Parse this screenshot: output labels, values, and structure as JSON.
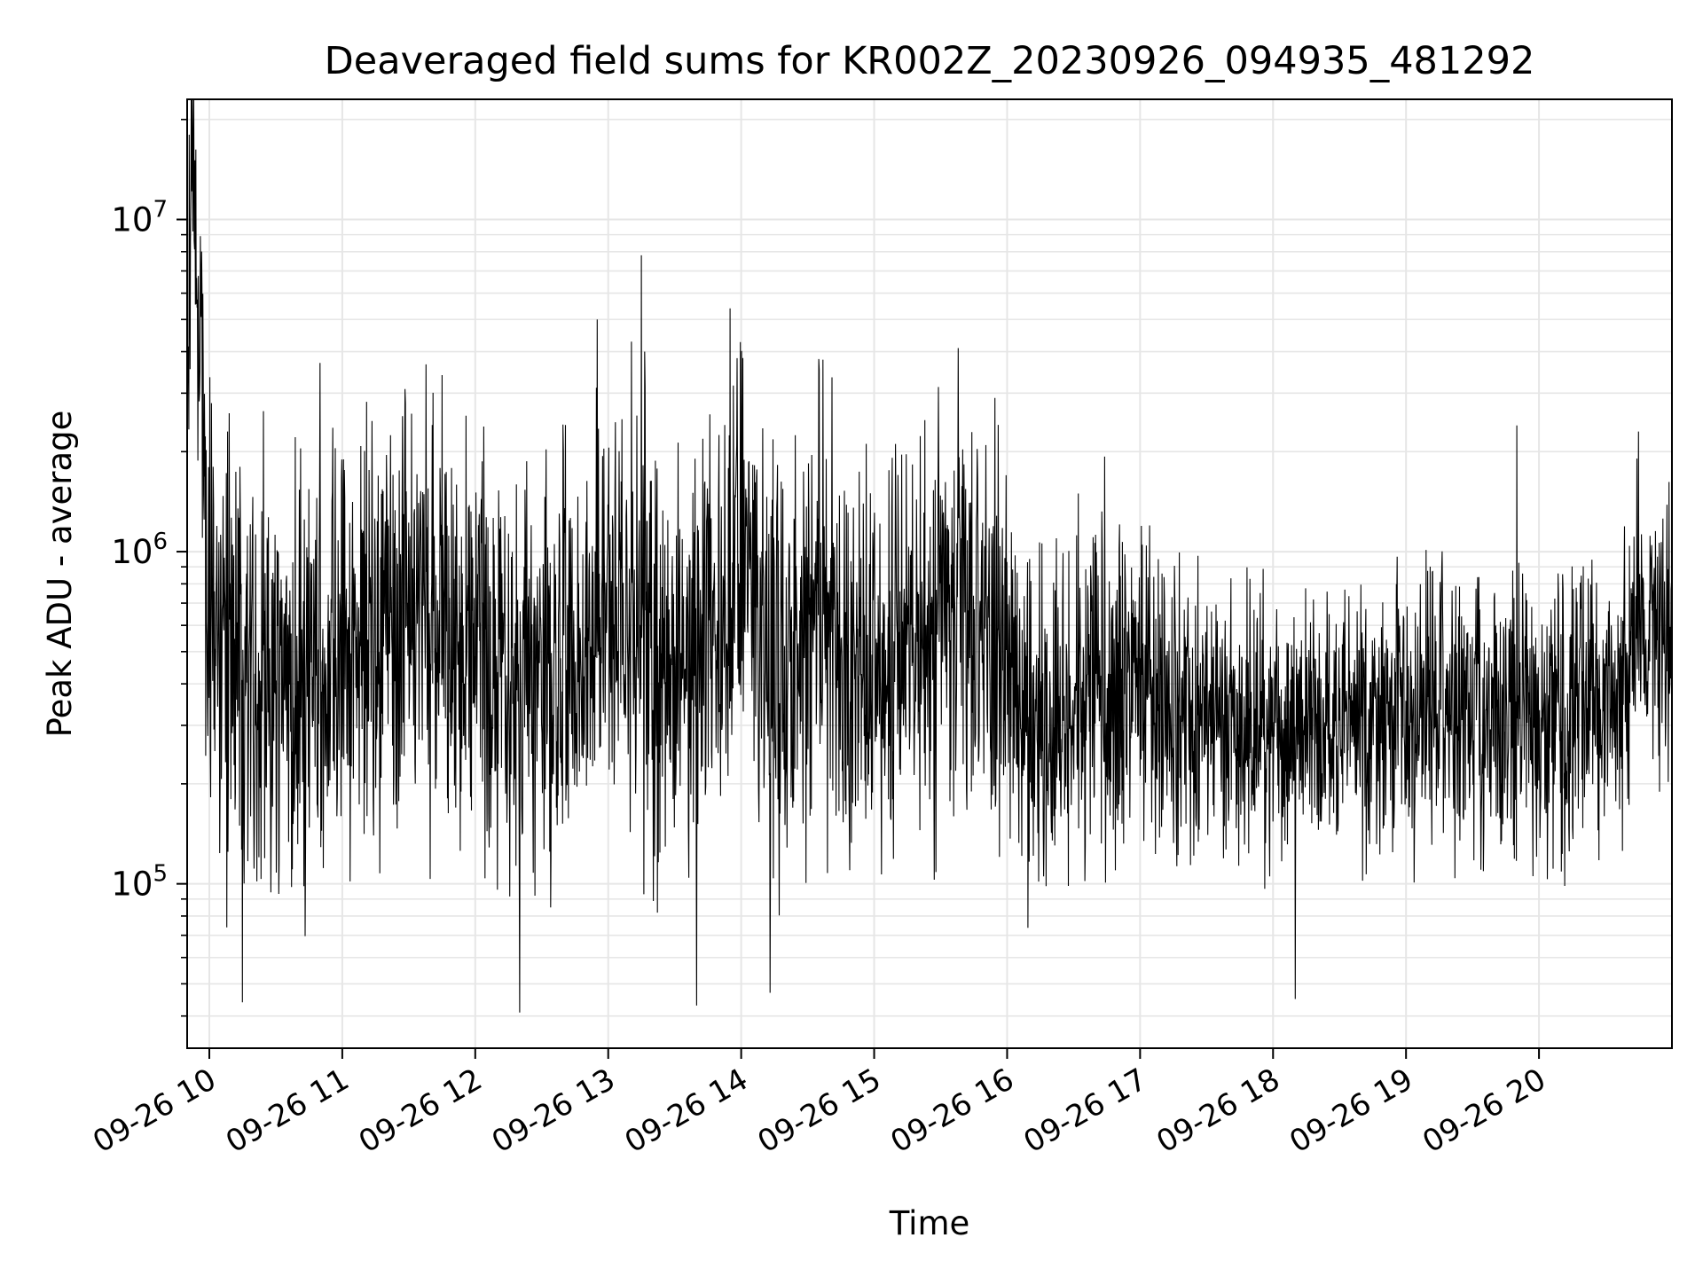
{
  "chart_data": {
    "type": "line",
    "title": "Deaveraged field sums for KR002Z_20230926_094935_481292",
    "xlabel": "Time",
    "ylabel": "Peak ADU - average",
    "yscale": "log",
    "grid": true,
    "grid_minor": true,
    "legend": "none",
    "line_color": "#000000",
    "grid_color": "#e6e6e6",
    "xlim": [
      "2023-09-26 09:50",
      "2023-09-26 21:00"
    ],
    "ylim": [
      32000,
      23000000
    ],
    "x_ticks": [
      {
        "value": "2023-09-26 10:00",
        "label": "09-26 10"
      },
      {
        "value": "2023-09-26 11:00",
        "label": "09-26 11"
      },
      {
        "value": "2023-09-26 12:00",
        "label": "09-26 12"
      },
      {
        "value": "2023-09-26 13:00",
        "label": "09-26 13"
      },
      {
        "value": "2023-09-26 14:00",
        "label": "09-26 14"
      },
      {
        "value": "2023-09-26 15:00",
        "label": "09-26 15"
      },
      {
        "value": "2023-09-26 16:00",
        "label": "09-26 16"
      },
      {
        "value": "2023-09-26 17:00",
        "label": "09-26 17"
      },
      {
        "value": "2023-09-26 18:00",
        "label": "09-26 18"
      },
      {
        "value": "2023-09-26 19:00",
        "label": "09-26 19"
      },
      {
        "value": "2023-09-26 20:00",
        "label": "09-26 20"
      }
    ],
    "y_ticks": [
      {
        "value": 100000,
        "base": "10",
        "exp": "5"
      },
      {
        "value": 1000000,
        "base": "10",
        "exp": "6"
      },
      {
        "value": 10000000,
        "base": "10",
        "exp": "7"
      }
    ],
    "series": [
      {
        "x": [
          "2023-09-26 09:50",
          "2023-09-26 09:52",
          "2023-09-26 10:00",
          "2023-09-26 10:10",
          "2023-09-26 10:20",
          "2023-09-26 10:30",
          "2023-09-26 10:40",
          "2023-09-26 10:50",
          "2023-09-26 11:00",
          "2023-09-26 11:10",
          "2023-09-26 11:20",
          "2023-09-26 11:30",
          "2023-09-26 11:40",
          "2023-09-26 11:50",
          "2023-09-26 12:00",
          "2023-09-26 12:10",
          "2023-09-26 12:20",
          "2023-09-26 12:30",
          "2023-09-26 12:40",
          "2023-09-26 12:50",
          "2023-09-26 13:00",
          "2023-09-26 13:10",
          "2023-09-26 13:20",
          "2023-09-26 13:30",
          "2023-09-26 13:40",
          "2023-09-26 13:50",
          "2023-09-26 14:00",
          "2023-09-26 14:10",
          "2023-09-26 14:20",
          "2023-09-26 14:30",
          "2023-09-26 14:40",
          "2023-09-26 14:50",
          "2023-09-26 15:00",
          "2023-09-26 15:10",
          "2023-09-26 15:20",
          "2023-09-26 15:30",
          "2023-09-26 15:40",
          "2023-09-26 15:50",
          "2023-09-26 16:00",
          "2023-09-26 16:10",
          "2023-09-26 16:20",
          "2023-09-26 16:30",
          "2023-09-26 16:40",
          "2023-09-26 16:50",
          "2023-09-26 17:00",
          "2023-09-26 17:10",
          "2023-09-26 17:20",
          "2023-09-26 17:30",
          "2023-09-26 17:40",
          "2023-09-26 17:50",
          "2023-09-26 18:00",
          "2023-09-26 18:10",
          "2023-09-26 18:20",
          "2023-09-26 18:30",
          "2023-09-26 18:40",
          "2023-09-26 18:50",
          "2023-09-26 19:00",
          "2023-09-26 19:10",
          "2023-09-26 19:20",
          "2023-09-26 19:30",
          "2023-09-26 19:40",
          "2023-09-26 19:50",
          "2023-09-26 20:00",
          "2023-09-26 20:10",
          "2023-09-26 20:20",
          "2023-09-26 20:30",
          "2023-09-26 20:40",
          "2023-09-26 20:50",
          "2023-09-26 21:00"
        ],
        "y": [
          1800000,
          17000000,
          600000,
          450000,
          500000,
          420000,
          380000,
          400000,
          480000,
          520000,
          600000,
          550000,
          700000,
          500000,
          550000,
          420000,
          380000,
          400000,
          450000,
          500000,
          620000,
          700000,
          500000,
          450000,
          600000,
          550000,
          1200000,
          500000,
          450000,
          550000,
          600000,
          420000,
          450000,
          500000,
          460000,
          600000,
          700000,
          500000,
          550000,
          320000,
          300000,
          350000,
          420000,
          380000,
          400000,
          350000,
          340000,
          300000,
          320000,
          300000,
          310000,
          290000,
          300000,
          320000,
          330000,
          300000,
          350000,
          380000,
          340000,
          320000,
          300000,
          330000,
          300000,
          310000,
          320000,
          330000,
          420000,
          650000,
          550000
        ],
        "spread": [
          2.6,
          1.5,
          3.0,
          3.2,
          3.0,
          3.0,
          2.8,
          2.8,
          2.8,
          2.8,
          2.8,
          2.8,
          2.8,
          2.8,
          2.8,
          2.8,
          2.8,
          2.8,
          2.8,
          2.8,
          2.8,
          2.8,
          2.8,
          2.8,
          2.8,
          2.8,
          2.8,
          2.8,
          2.8,
          2.8,
          2.8,
          2.8,
          2.8,
          2.8,
          2.8,
          2.8,
          2.8,
          2.8,
          2.6,
          2.4,
          2.4,
          2.4,
          2.4,
          2.4,
          2.2,
          2.0,
          2.0,
          2.0,
          2.0,
          2.0,
          2.0,
          2.0,
          2.0,
          2.0,
          2.0,
          2.0,
          2.0,
          2.0,
          2.0,
          2.0,
          2.0,
          2.0,
          2.0,
          2.0,
          2.0,
          2.0,
          2.2,
          2.2,
          2.0
        ]
      }
    ],
    "extremes": [
      {
        "x": "2023-09-26 09:51",
        "y": 18000000
      },
      {
        "x": "2023-09-26 10:01",
        "y": 2800000
      },
      {
        "x": "2023-09-26 10:15",
        "y": 44000
      },
      {
        "x": "2023-09-26 10:50",
        "y": 3700000
      },
      {
        "x": "2023-09-26 11:45",
        "y": 3400000
      },
      {
        "x": "2023-09-26 12:20",
        "y": 41000
      },
      {
        "x": "2023-09-26 12:55",
        "y": 5000000
      },
      {
        "x": "2023-09-26 13:15",
        "y": 7800000
      },
      {
        "x": "2023-09-26 13:40",
        "y": 43000
      },
      {
        "x": "2023-09-26 13:55",
        "y": 5400000
      },
      {
        "x": "2023-09-26 14:13",
        "y": 47000
      },
      {
        "x": "2023-09-26 14:35",
        "y": 3800000
      },
      {
        "x": "2023-09-26 15:38",
        "y": 4100000
      },
      {
        "x": "2023-09-26 18:10",
        "y": 45000
      },
      {
        "x": "2023-09-26 19:50",
        "y": 2400000
      },
      {
        "x": "2023-09-26 20:45",
        "y": 2300000
      }
    ]
  }
}
